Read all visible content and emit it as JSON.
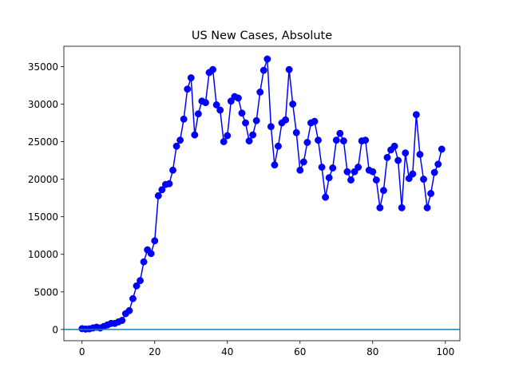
{
  "chart_data": {
    "type": "line",
    "title": "US New Cases, Absolute",
    "xlabel": "",
    "ylabel": "",
    "xlim": [
      -5,
      104
    ],
    "ylim": [
      -1500,
      37700
    ],
    "x_ticks": [
      0,
      20,
      40,
      60,
      80,
      100
    ],
    "x_tick_labels": [
      "0",
      "20",
      "40",
      "60",
      "80",
      "100"
    ],
    "y_ticks": [
      0,
      5000,
      10000,
      15000,
      20000,
      25000,
      30000,
      35000
    ],
    "y_tick_labels": [
      "0",
      "5000",
      "10000",
      "15000",
      "20000",
      "25000",
      "30000",
      "35000"
    ],
    "grid": false,
    "reference_line_y": 0,
    "colors": {
      "series": "#0000ff",
      "reference": "#1f77b4",
      "axes": "#000000"
    },
    "series": [
      {
        "marker": "circle",
        "x": [
          0,
          1,
          2,
          3,
          4,
          5,
          6,
          7,
          8,
          9,
          10,
          11,
          12,
          13,
          14,
          15,
          16,
          17,
          18,
          19,
          20,
          21,
          22,
          23,
          24,
          25,
          26,
          27,
          28,
          29,
          30,
          31,
          32,
          33,
          34,
          35,
          36,
          37,
          38,
          39,
          40,
          41,
          42,
          43,
          44,
          45,
          46,
          47,
          48,
          49,
          50,
          51,
          52,
          53,
          54,
          55,
          56,
          57,
          58,
          59,
          60,
          61,
          62,
          63,
          64,
          65,
          66,
          67,
          68,
          69,
          70,
          71,
          72,
          73,
          74,
          75,
          76,
          77,
          78,
          79,
          80,
          81,
          82,
          83,
          84,
          85,
          86,
          87,
          88,
          89,
          90,
          91,
          92,
          93,
          94,
          95,
          96,
          97,
          98,
          99
        ],
        "values": [
          100,
          50,
          80,
          200,
          300,
          200,
          400,
          600,
          800,
          800,
          1000,
          1200,
          2100,
          2500,
          4100,
          5800,
          6500,
          9000,
          10600,
          10100,
          11800,
          17800,
          18600,
          19300,
          19400,
          21200,
          24400,
          25200,
          28000,
          32000,
          33500,
          25900,
          28700,
          30400,
          30200,
          34200,
          34600,
          29900,
          29200,
          25000,
          25800,
          30400,
          31000,
          30800,
          28800,
          27500,
          25100,
          25900,
          27800,
          31600,
          34500,
          36000,
          27000,
          21900,
          24400,
          27500,
          27900,
          34600,
          30000,
          26200,
          21200,
          22300,
          24900,
          27500,
          27700,
          25200,
          21600,
          17600,
          20200,
          21500,
          25200,
          26100,
          25100,
          21000,
          19900,
          21000,
          21600,
          25100,
          25200,
          21200,
          21000,
          19900,
          16200,
          18500,
          22900,
          23900,
          24400,
          22500,
          16200,
          23500,
          20100,
          20700,
          28600,
          23300,
          20000,
          16200,
          18100,
          20900,
          22000,
          24000
        ]
      }
    ]
  }
}
